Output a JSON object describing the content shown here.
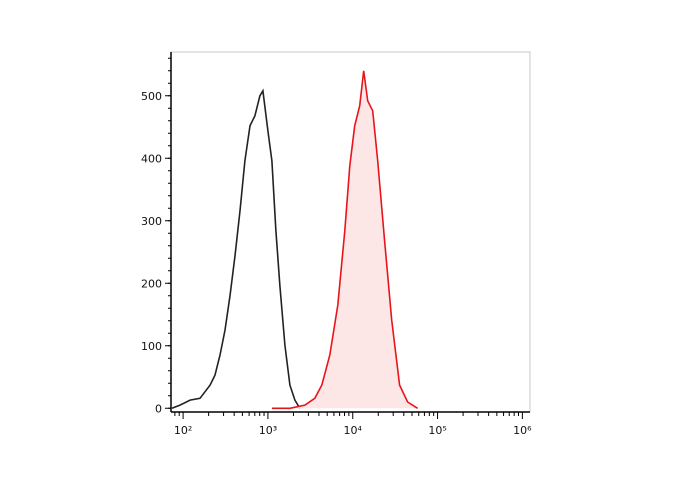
{
  "chart_data": {
    "type": "histogram-overlay",
    "xscale": "log",
    "xlim": [
      72,
      1230000
    ],
    "ylim": [
      -6,
      570
    ],
    "xticks": [
      {
        "value": 100,
        "label": "10²"
      },
      {
        "value": 1000,
        "label": "10³"
      },
      {
        "value": 10000,
        "label": "10⁴"
      },
      {
        "value": 100000,
        "label": "10⁵"
      },
      {
        "value": 1000000,
        "label": "10⁶"
      }
    ],
    "yticks": [
      0,
      100,
      200,
      300,
      400,
      500
    ],
    "series": [
      {
        "color": "#222222",
        "fill": "none",
        "x": [
          74,
          92,
          121,
          158,
          208,
          238,
          272,
          312,
          357,
          409,
          469,
          536,
          614,
          703,
          805,
          873,
          1000,
          1114,
          1242,
          1384,
          1585,
          1815,
          2080,
          2378
        ],
        "values": [
          0,
          5,
          13,
          16,
          37,
          53,
          85,
          125,
          180,
          244,
          316,
          396,
          452,
          468,
          500,
          508,
          444,
          396,
          284,
          196,
          101,
          37,
          13,
          0
        ]
      },
      {
        "color": "#e8141c",
        "fill": "#fde6e6",
        "x": [
          1114,
          1815,
          2723,
          3573,
          4315,
          5358,
          6663,
          8054,
          9226,
          10560,
          12090,
          13460,
          15000,
          17180,
          19670,
          23780,
          28760,
          35700,
          44360,
          58210
        ],
        "values": [
          0,
          0,
          5,
          16,
          37,
          85,
          165,
          284,
          388,
          452,
          484,
          540,
          492,
          476,
          396,
          268,
          141,
          37,
          10,
          0
        ]
      }
    ]
  }
}
